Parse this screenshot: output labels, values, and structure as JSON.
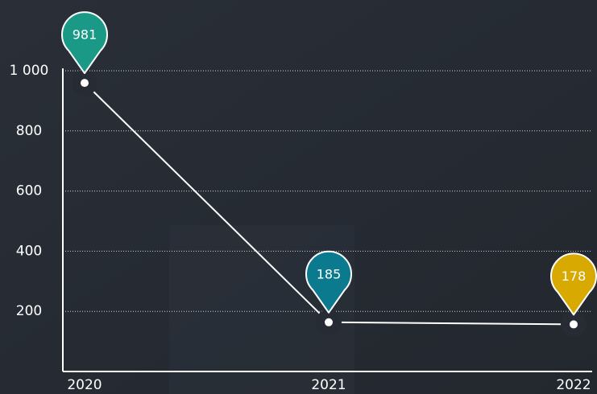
{
  "chart_data": {
    "type": "line",
    "categories": [
      "2020",
      "2021",
      "2022"
    ],
    "values": [
      981,
      185,
      178
    ],
    "colors": [
      "#1a9a86",
      "#0b7a8e",
      "#d8a900"
    ],
    "line_color": "#ffffff",
    "ylim": [
      0,
      1000
    ],
    "yticks": [
      200,
      400,
      600,
      800,
      {
        "value": 1000,
        "label": "1 000"
      }
    ],
    "grid": true
  }
}
